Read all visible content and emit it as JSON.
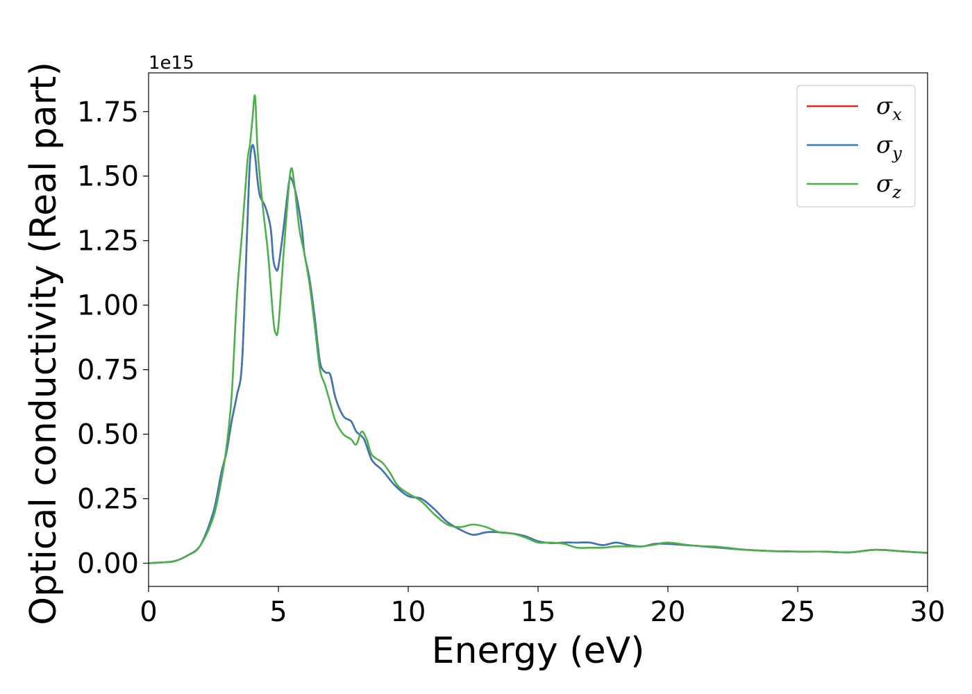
{
  "chart_data": {
    "type": "line",
    "xlabel": "Energy (eV)",
    "ylabel": "Optical conductivity (Real part)",
    "y_offset_label": "1e15",
    "xlim": [
      0,
      30
    ],
    "ylim": [
      -0.09,
      1.9
    ],
    "x_ticks": [
      0,
      5,
      10,
      15,
      20,
      25,
      30
    ],
    "x_tick_labels": [
      "0",
      "5",
      "10",
      "15",
      "20",
      "25",
      "30"
    ],
    "y_ticks": [
      0.0,
      0.25,
      0.5,
      0.75,
      1.0,
      1.25,
      1.5,
      1.75
    ],
    "y_tick_labels": [
      "0.00",
      "0.25",
      "0.50",
      "0.75",
      "1.00",
      "1.25",
      "1.50",
      "1.75"
    ],
    "grid": false,
    "legend_position": "top-right",
    "series": [
      {
        "name": "σx",
        "symbol": "σ",
        "subscript": "x",
        "color": "#d62728",
        "x": [
          0,
          0.5,
          1.0,
          1.5,
          2.0,
          2.5,
          2.8,
          3.0,
          3.2,
          3.4,
          3.6,
          3.8,
          3.9,
          4.0,
          4.1,
          4.2,
          4.3,
          4.5,
          4.7,
          4.8,
          4.9,
          5.0,
          5.2,
          5.4,
          5.5,
          5.7,
          5.9,
          6.0,
          6.2,
          6.4,
          6.6,
          6.8,
          7.0,
          7.2,
          7.5,
          7.8,
          8.0,
          8.3,
          8.6,
          9.0,
          9.5,
          10.0,
          10.5,
          11.0,
          11.5,
          12.0,
          12.5,
          13.0,
          13.5,
          14.0,
          14.5,
          15.0,
          15.5,
          16.0,
          16.5,
          17.0,
          17.5,
          18.0,
          18.5,
          19.0,
          19.5,
          20.0,
          21.0,
          22.0,
          23.0,
          24.0,
          25.0,
          26.0,
          27.0,
          28.0,
          29.0,
          30.0
        ],
        "values": [
          0.0,
          0.003,
          0.008,
          0.03,
          0.07,
          0.2,
          0.35,
          0.43,
          0.55,
          0.65,
          0.78,
          1.3,
          1.55,
          1.62,
          1.58,
          1.48,
          1.42,
          1.38,
          1.3,
          1.18,
          1.14,
          1.15,
          1.3,
          1.47,
          1.49,
          1.42,
          1.3,
          1.2,
          1.1,
          0.95,
          0.78,
          0.74,
          0.73,
          0.64,
          0.57,
          0.55,
          0.51,
          0.48,
          0.4,
          0.36,
          0.3,
          0.26,
          0.25,
          0.21,
          0.16,
          0.13,
          0.11,
          0.12,
          0.12,
          0.115,
          0.105,
          0.085,
          0.078,
          0.08,
          0.08,
          0.08,
          0.07,
          0.08,
          0.07,
          0.065,
          0.075,
          0.075,
          0.068,
          0.06,
          0.052,
          0.047,
          0.045,
          0.045,
          0.042,
          0.052,
          0.046,
          0.04
        ]
      },
      {
        "name": "σy",
        "symbol": "σ",
        "subscript": "y",
        "color": "#3c78b4",
        "x": [
          0,
          0.5,
          1.0,
          1.5,
          2.0,
          2.5,
          2.8,
          3.0,
          3.2,
          3.4,
          3.6,
          3.8,
          3.9,
          4.0,
          4.1,
          4.2,
          4.3,
          4.5,
          4.7,
          4.8,
          4.9,
          5.0,
          5.2,
          5.4,
          5.5,
          5.7,
          5.9,
          6.0,
          6.2,
          6.4,
          6.6,
          6.8,
          7.0,
          7.2,
          7.5,
          7.8,
          8.0,
          8.3,
          8.6,
          9.0,
          9.5,
          10.0,
          10.5,
          11.0,
          11.5,
          12.0,
          12.5,
          13.0,
          13.5,
          14.0,
          14.5,
          15.0,
          15.5,
          16.0,
          16.5,
          17.0,
          17.5,
          18.0,
          18.5,
          19.0,
          19.5,
          20.0,
          21.0,
          22.0,
          23.0,
          24.0,
          25.0,
          26.0,
          27.0,
          28.0,
          29.0,
          30.0
        ],
        "values": [
          0.0,
          0.003,
          0.008,
          0.03,
          0.07,
          0.2,
          0.35,
          0.43,
          0.55,
          0.65,
          0.78,
          1.3,
          1.55,
          1.62,
          1.58,
          1.48,
          1.42,
          1.38,
          1.3,
          1.18,
          1.14,
          1.15,
          1.3,
          1.47,
          1.49,
          1.42,
          1.3,
          1.2,
          1.1,
          0.95,
          0.78,
          0.74,
          0.73,
          0.64,
          0.57,
          0.55,
          0.51,
          0.48,
          0.4,
          0.36,
          0.3,
          0.26,
          0.25,
          0.21,
          0.16,
          0.13,
          0.11,
          0.12,
          0.12,
          0.115,
          0.105,
          0.085,
          0.078,
          0.08,
          0.08,
          0.08,
          0.07,
          0.08,
          0.07,
          0.065,
          0.075,
          0.075,
          0.068,
          0.06,
          0.052,
          0.047,
          0.045,
          0.045,
          0.042,
          0.052,
          0.046,
          0.04
        ]
      },
      {
        "name": "σz",
        "symbol": "σ",
        "subscript": "z",
        "color": "#4daf4a",
        "x": [
          0,
          0.5,
          1.0,
          1.5,
          2.0,
          2.5,
          2.8,
          3.0,
          3.2,
          3.4,
          3.6,
          3.8,
          3.9,
          4.0,
          4.1,
          4.2,
          4.4,
          4.6,
          4.8,
          4.9,
          5.0,
          5.2,
          5.4,
          5.5,
          5.6,
          5.8,
          6.0,
          6.2,
          6.4,
          6.6,
          6.8,
          7.0,
          7.2,
          7.5,
          7.8,
          8.0,
          8.2,
          8.4,
          8.6,
          9.0,
          9.3,
          9.6,
          10.0,
          10.5,
          11.0,
          11.5,
          12.0,
          12.5,
          13.0,
          13.5,
          14.0,
          14.5,
          15.0,
          15.5,
          16.0,
          16.5,
          17.0,
          17.5,
          18.0,
          18.5,
          19.0,
          19.5,
          20.0,
          21.0,
          22.0,
          23.0,
          24.0,
          25.0,
          26.0,
          27.0,
          28.0,
          29.0,
          30.0
        ],
        "values": [
          0.0,
          0.003,
          0.008,
          0.03,
          0.07,
          0.18,
          0.32,
          0.45,
          0.65,
          1.03,
          1.28,
          1.55,
          1.62,
          1.72,
          1.81,
          1.6,
          1.38,
          1.2,
          0.95,
          0.89,
          0.92,
          1.2,
          1.46,
          1.53,
          1.48,
          1.3,
          1.2,
          1.08,
          0.92,
          0.75,
          0.69,
          0.62,
          0.55,
          0.5,
          0.48,
          0.46,
          0.51,
          0.48,
          0.42,
          0.39,
          0.35,
          0.3,
          0.27,
          0.24,
          0.19,
          0.15,
          0.14,
          0.15,
          0.14,
          0.12,
          0.115,
          0.1,
          0.08,
          0.08,
          0.075,
          0.06,
          0.06,
          0.06,
          0.065,
          0.065,
          0.065,
          0.072,
          0.08,
          0.068,
          0.063,
          0.052,
          0.047,
          0.045,
          0.045,
          0.042,
          0.052,
          0.046,
          0.04
        ]
      }
    ]
  }
}
